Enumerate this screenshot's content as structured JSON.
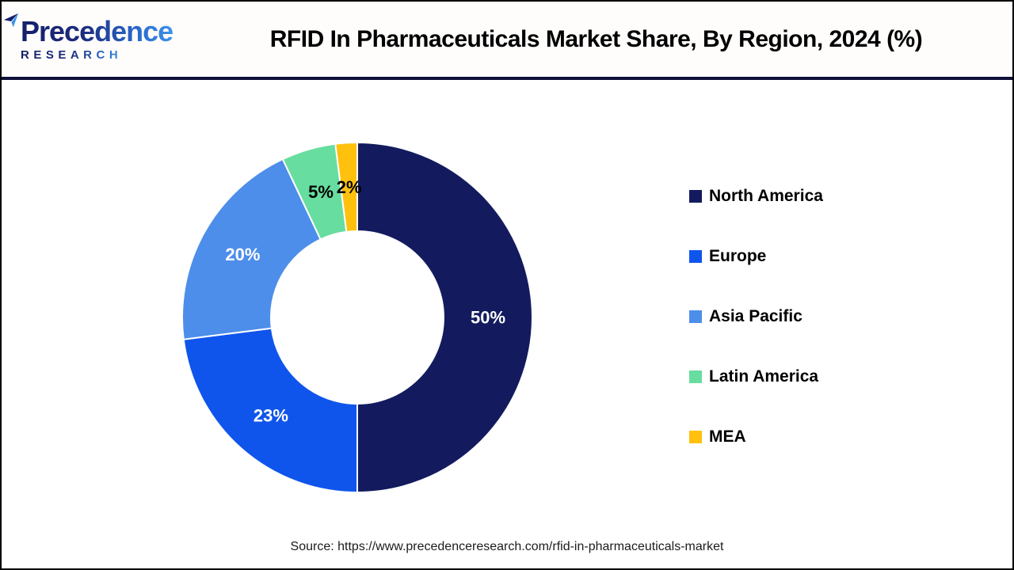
{
  "header": {
    "logo": {
      "brand_line1": "Precedence",
      "brand_line2": "RESEARCH"
    },
    "title": "RFID In Pharmaceuticals Market Share, By Region, 2024 (%)"
  },
  "chart_data": {
    "type": "pie",
    "subtype": "donut",
    "title": "RFID In Pharmaceuticals Market Share, By Region, 2024 (%)",
    "categories": [
      "North America",
      "Europe",
      "Asia Pacific",
      "Latin America",
      "MEA"
    ],
    "values": [
      50,
      23,
      20,
      5,
      2
    ],
    "unit": "%",
    "data_labels": [
      "50%",
      "23%",
      "20%",
      "5%",
      "2%"
    ],
    "data_label_colors": [
      "#ffffff",
      "#ffffff",
      "#ffffff",
      "#000000",
      "#000000"
    ],
    "colors": [
      "#131b5e",
      "#0f55ec",
      "#4d8eea",
      "#67dd9f",
      "#ffc10d"
    ],
    "start_angle_deg": 0,
    "direction": "clockwise",
    "legend_position": "right",
    "separator_color": "#ffffff"
  },
  "footer": {
    "source": "Source: https://www.precedenceresearch.com/rfid-in-pharmaceuticals-market"
  }
}
